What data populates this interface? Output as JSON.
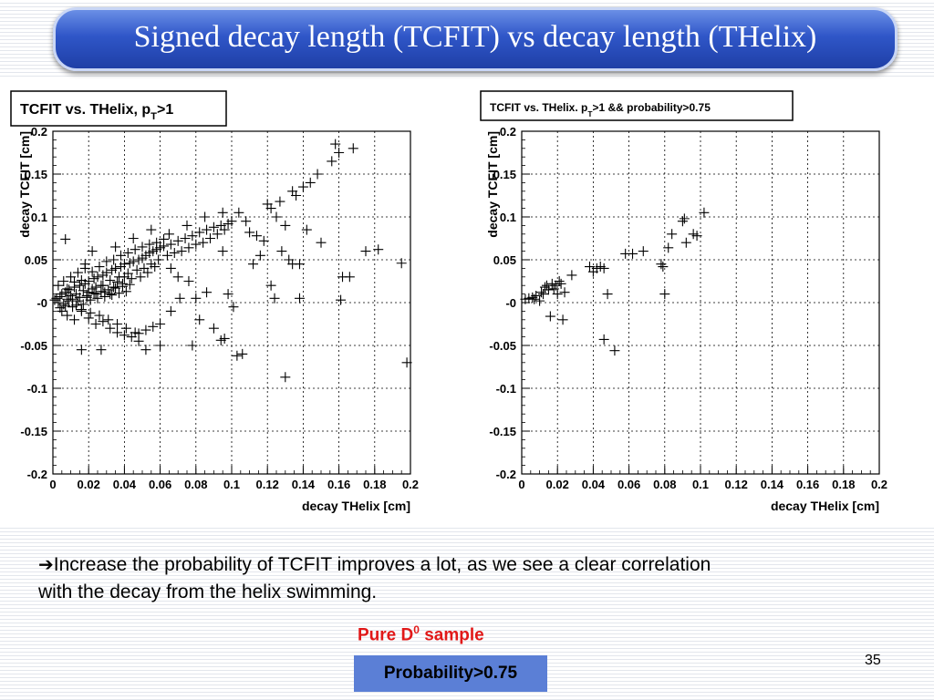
{
  "slide": {
    "title": "Signed decay length (TCFIT) vs decay length (THelix)",
    "arrow_glyph": "➔",
    "arrow_text_line1": "Increase the probability of TCFIT improves a lot, as we see a clear correlation",
    "arrow_text_line2": "with the decay from the helix swimming.",
    "pure_label": "Pure D",
    "pure_sup": "0",
    "pure_suffix": " sample",
    "prob_box": "Probability>0.75",
    "page_number": "35"
  },
  "colors": {
    "title_bg": "#2f56c8",
    "red": "#e11818",
    "box": "#5b7fd6"
  },
  "chart_data": [
    {
      "type": "scatter",
      "title_main": "TCFIT vs. THelix, p",
      "title_sub": "T",
      "title_tail": ">1",
      "xlabel": "decay THelix [cm]",
      "ylabel": "decay TCFIT [cm]",
      "xlim": [
        0,
        0.2
      ],
      "ylim": [
        -0.2,
        0.2
      ],
      "xticks": [
        "0",
        "0.02",
        "0.04",
        "0.06",
        "0.08",
        "0.1",
        "0.12",
        "0.14",
        "0.16",
        "0.18",
        "0.2"
      ],
      "yticks": [
        "0.2",
        "0.15",
        "0.1",
        "0.05",
        "-0",
        "-0.05",
        "-0.1",
        "-0.15",
        "-0.2"
      ],
      "grid": true,
      "marker": "+",
      "points": [
        [
          0.001,
          0.003
        ],
        [
          0.002,
          0.005
        ],
        [
          0.003,
          0.0
        ],
        [
          0.004,
          0.007
        ],
        [
          0.005,
          0.01
        ],
        [
          0.006,
          -0.002
        ],
        [
          0.007,
          0.012
        ],
        [
          0.008,
          0.004
        ],
        [
          0.009,
          0.015
        ],
        [
          0.01,
          0.008
        ],
        [
          0.011,
          -0.005
        ],
        [
          0.012,
          0.018
        ],
        [
          0.013,
          0.01
        ],
        [
          0.014,
          0.002
        ],
        [
          0.015,
          0.02
        ],
        [
          0.016,
          -0.008
        ],
        [
          0.017,
          0.014
        ],
        [
          0.018,
          0.022
        ],
        [
          0.019,
          0.006
        ],
        [
          0.02,
          0.025
        ],
        [
          0.021,
          -0.012
        ],
        [
          0.022,
          0.016
        ],
        [
          0.023,
          0.028
        ],
        [
          0.024,
          0.01
        ],
        [
          0.025,
          0.03
        ],
        [
          0.026,
          -0.015
        ],
        [
          0.027,
          0.02
        ],
        [
          0.028,
          0.032
        ],
        [
          0.029,
          0.012
        ],
        [
          0.03,
          0.035
        ],
        [
          0.031,
          -0.02
        ],
        [
          0.032,
          0.026
        ],
        [
          0.033,
          0.038
        ],
        [
          0.034,
          0.018
        ],
        [
          0.035,
          0.04
        ],
        [
          0.036,
          -0.025
        ],
        [
          0.037,
          0.03
        ],
        [
          0.038,
          0.042
        ],
        [
          0.039,
          0.022
        ],
        [
          0.04,
          0.045
        ],
        [
          0.041,
          -0.03
        ],
        [
          0.042,
          0.034
        ],
        [
          0.043,
          0.046
        ],
        [
          0.044,
          0.028
        ],
        [
          0.045,
          0.048
        ],
        [
          0.046,
          -0.035
        ],
        [
          0.047,
          0.038
        ],
        [
          0.048,
          0.05
        ],
        [
          0.049,
          0.03
        ],
        [
          0.05,
          0.052
        ],
        [
          0.051,
          0.04
        ],
        [
          0.052,
          0.055
        ],
        [
          0.053,
          0.035
        ],
        [
          0.054,
          0.058
        ],
        [
          0.055,
          0.045
        ],
        [
          0.056,
          0.06
        ],
        [
          0.057,
          0.042
        ],
        [
          0.058,
          0.062
        ],
        [
          0.059,
          0.05
        ],
        [
          0.06,
          0.064
        ],
        [
          0.062,
          0.066
        ],
        [
          0.064,
          0.055
        ],
        [
          0.066,
          0.068
        ],
        [
          0.068,
          0.058
        ],
        [
          0.07,
          0.072
        ],
        [
          0.072,
          0.06
        ],
        [
          0.074,
          0.075
        ],
        [
          0.076,
          0.064
        ],
        [
          0.078,
          0.078
        ],
        [
          0.08,
          0.068
        ],
        [
          0.082,
          0.082
        ],
        [
          0.084,
          0.07
        ],
        [
          0.086,
          0.085
        ],
        [
          0.088,
          0.075
        ],
        [
          0.09,
          0.088
        ],
        [
          0.092,
          0.08
        ],
        [
          0.094,
          0.09
        ],
        [
          0.096,
          0.085
        ],
        [
          0.098,
          0.092
        ],
        [
          0.1,
          0.095
        ],
        [
          0.003,
          0.02
        ],
        [
          0.006,
          0.025
        ],
        [
          0.008,
          -0.015
        ],
        [
          0.01,
          0.03
        ],
        [
          0.012,
          -0.02
        ],
        [
          0.014,
          0.035
        ],
        [
          0.016,
          -0.01
        ],
        [
          0.018,
          0.04
        ],
        [
          0.02,
          -0.018
        ],
        [
          0.022,
          0.036
        ],
        [
          0.024,
          -0.025
        ],
        [
          0.026,
          0.042
        ],
        [
          0.028,
          -0.022
        ],
        [
          0.03,
          0.048
        ],
        [
          0.032,
          -0.03
        ],
        [
          0.034,
          0.05
        ],
        [
          0.036,
          -0.035
        ],
        [
          0.038,
          0.055
        ],
        [
          0.04,
          -0.038
        ],
        [
          0.042,
          0.058
        ],
        [
          0.044,
          -0.04
        ],
        [
          0.046,
          0.062
        ],
        [
          0.048,
          -0.036
        ],
        [
          0.05,
          0.065
        ],
        [
          0.052,
          -0.032
        ],
        [
          0.054,
          0.068
        ],
        [
          0.056,
          -0.028
        ],
        [
          0.058,
          0.07
        ],
        [
          0.06,
          -0.025
        ],
        [
          0.062,
          0.074
        ],
        [
          0.004,
          -0.006
        ],
        [
          0.007,
          -0.004
        ],
        [
          0.009,
          0.002
        ],
        [
          0.011,
          0.004
        ],
        [
          0.013,
          -0.003
        ],
        [
          0.015,
          0.006
        ],
        [
          0.017,
          -0.002
        ],
        [
          0.019,
          0.008
        ],
        [
          0.021,
          0.003
        ],
        [
          0.023,
          0.011
        ],
        [
          0.025,
          0.005
        ],
        [
          0.027,
          0.013
        ],
        [
          0.029,
          0.007
        ],
        [
          0.031,
          0.015
        ],
        [
          0.033,
          0.009
        ],
        [
          0.035,
          0.017
        ],
        [
          0.037,
          0.011
        ],
        [
          0.039,
          0.019
        ],
        [
          0.041,
          0.013
        ],
        [
          0.043,
          0.021
        ],
        [
          0.005,
          -0.01
        ],
        [
          0.008,
          0.016
        ],
        [
          0.012,
          0.024
        ],
        [
          0.016,
          0.026
        ],
        [
          0.02,
          0.012
        ],
        [
          0.024,
          0.018
        ],
        [
          0.028,
          0.02
        ],
        [
          0.032,
          0.01
        ],
        [
          0.036,
          0.024
        ],
        [
          0.04,
          0.03
        ],
        [
          0.007,
          0.074
        ],
        [
          0.018,
          0.045
        ],
        [
          0.022,
          0.06
        ],
        [
          0.035,
          0.065
        ],
        [
          0.045,
          0.075
        ],
        [
          0.055,
          0.085
        ],
        [
          0.065,
          0.08
        ],
        [
          0.075,
          0.09
        ],
        [
          0.085,
          0.1
        ],
        [
          0.095,
          0.105
        ],
        [
          0.016,
          -0.055
        ],
        [
          0.027,
          -0.055
        ],
        [
          0.048,
          -0.045
        ],
        [
          0.052,
          -0.055
        ],
        [
          0.06,
          -0.05
        ],
        [
          0.066,
          -0.01
        ],
        [
          0.071,
          0.005
        ],
        [
          0.078,
          -0.05
        ],
        [
          0.082,
          -0.02
        ],
        [
          0.09,
          -0.03
        ],
        [
          0.094,
          -0.044
        ],
        [
          0.096,
          -0.042
        ],
        [
          0.103,
          -0.062
        ],
        [
          0.101,
          -0.005
        ],
        [
          0.098,
          0.01
        ],
        [
          0.086,
          0.012
        ],
        [
          0.08,
          0.005
        ],
        [
          0.076,
          0.025
        ],
        [
          0.07,
          0.03
        ],
        [
          0.066,
          0.04
        ],
        [
          0.104,
          0.105
        ],
        [
          0.108,
          0.095
        ],
        [
          0.11,
          0.082
        ],
        [
          0.114,
          0.078
        ],
        [
          0.118,
          0.072
        ],
        [
          0.12,
          0.115
        ],
        [
          0.122,
          0.11
        ],
        [
          0.125,
          0.1
        ],
        [
          0.127,
          0.118
        ],
        [
          0.13,
          0.09
        ],
        [
          0.132,
          0.05
        ],
        [
          0.134,
          0.13
        ],
        [
          0.136,
          0.125
        ],
        [
          0.138,
          0.045
        ],
        [
          0.14,
          0.135
        ],
        [
          0.144,
          0.14
        ],
        [
          0.148,
          0.15
        ],
        [
          0.15,
          0.07
        ],
        [
          0.156,
          0.165
        ],
        [
          0.158,
          0.185
        ],
        [
          0.16,
          0.175
        ],
        [
          0.168,
          0.18
        ],
        [
          0.162,
          0.03
        ],
        [
          0.166,
          0.03
        ],
        [
          0.161,
          0.003
        ],
        [
          0.142,
          0.085
        ],
        [
          0.138,
          0.005
        ],
        [
          0.124,
          0.005
        ],
        [
          0.122,
          0.02
        ],
        [
          0.116,
          0.055
        ],
        [
          0.13,
          -0.087
        ],
        [
          0.106,
          -0.06
        ],
        [
          0.175,
          0.06
        ],
        [
          0.182,
          0.062
        ],
        [
          0.195,
          0.046
        ],
        [
          0.198,
          -0.07
        ],
        [
          0.128,
          0.06
        ],
        [
          0.112,
          0.045
        ],
        [
          0.134,
          0.045
        ],
        [
          0.095,
          0.06
        ]
      ]
    },
    {
      "type": "scatter",
      "title_main": "TCFIT vs. THelix. p",
      "title_sub": "T",
      "title_tail": ">1 && probability>0.75",
      "xlabel": "decay THelix [cm]",
      "ylabel": "decay TCFIT [cm]",
      "xlim": [
        0,
        0.2
      ],
      "ylim": [
        -0.2,
        0.2
      ],
      "xticks": [
        "0",
        "0.02",
        "0.04",
        "0.06",
        "0.08",
        "0.1",
        "0.12",
        "0.14",
        "0.16",
        "0.18",
        "0.2"
      ],
      "yticks": [
        "0.2",
        "0.15",
        "0.1",
        "0.05",
        "-0",
        "-0.05",
        "-0.1",
        "-0.15",
        "-0.2"
      ],
      "grid": true,
      "marker": "+",
      "points": [
        [
          0.002,
          0.004
        ],
        [
          0.004,
          0.005
        ],
        [
          0.006,
          0.006
        ],
        [
          0.007,
          0.004
        ],
        [
          0.008,
          0.008
        ],
        [
          0.01,
          0.002
        ],
        [
          0.011,
          0.012
        ],
        [
          0.012,
          0.01
        ],
        [
          0.013,
          0.018
        ],
        [
          0.014,
          0.02
        ],
        [
          0.015,
          0.015
        ],
        [
          0.016,
          -0.016
        ],
        [
          0.017,
          0.022
        ],
        [
          0.018,
          0.016
        ],
        [
          0.019,
          0.02
        ],
        [
          0.02,
          0.01
        ],
        [
          0.021,
          0.025
        ],
        [
          0.022,
          0.022
        ],
        [
          0.023,
          -0.02
        ],
        [
          0.024,
          0.012
        ],
        [
          0.028,
          0.032
        ],
        [
          0.038,
          0.042
        ],
        [
          0.04,
          0.036
        ],
        [
          0.042,
          0.04
        ],
        [
          0.044,
          0.042
        ],
        [
          0.046,
          0.04
        ],
        [
          0.048,
          0.01
        ],
        [
          0.046,
          -0.043
        ],
        [
          0.052,
          -0.056
        ],
        [
          0.058,
          0.057
        ],
        [
          0.062,
          0.057
        ],
        [
          0.068,
          0.06
        ],
        [
          0.078,
          0.045
        ],
        [
          0.079,
          0.042
        ],
        [
          0.08,
          0.01
        ],
        [
          0.082,
          0.064
        ],
        [
          0.084,
          0.08
        ],
        [
          0.09,
          0.095
        ],
        [
          0.091,
          0.098
        ],
        [
          0.092,
          0.07
        ],
        [
          0.096,
          0.08
        ],
        [
          0.098,
          0.078
        ],
        [
          0.102,
          0.105
        ]
      ]
    }
  ]
}
